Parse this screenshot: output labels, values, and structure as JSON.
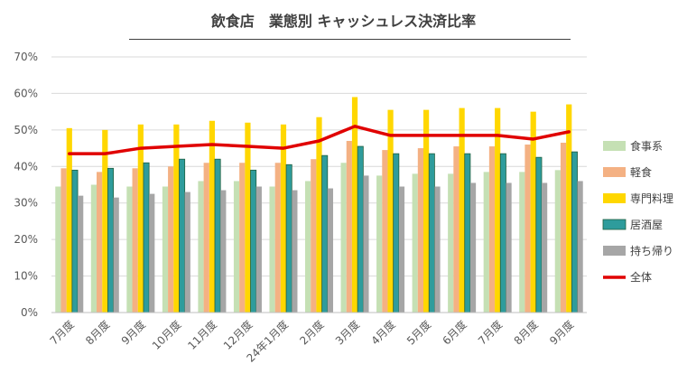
{
  "chart_data": {
    "type": "bar",
    "title": "飲食店　業態別 キャッシュレス決済比率",
    "categories": [
      "7月度",
      "8月度",
      "9月度",
      "10月度",
      "11月度",
      "12月度",
      "24年1月度",
      "2月度",
      "3月度",
      "4月度",
      "5月度",
      "6月度",
      "7月度",
      "8月度",
      "9月度"
    ],
    "yticks": [
      "0%",
      "10%",
      "20%",
      "30%",
      "40%",
      "50%",
      "60%",
      "70%"
    ],
    "ylim": [
      0,
      70
    ],
    "grid": true,
    "legend_position": "right",
    "series": [
      {
        "name": "食事系",
        "kind": "bar",
        "color": "#c5e0b4",
        "values": [
          34.5,
          35,
          34.5,
          34.5,
          36,
          36,
          34.5,
          36,
          41,
          37.5,
          38,
          38,
          38.5,
          38.5,
          39
        ]
      },
      {
        "name": "軽食",
        "kind": "bar",
        "color": "#f4b183",
        "values": [
          39.5,
          38.5,
          39.5,
          40,
          41,
          41,
          41,
          42,
          47,
          44.5,
          45,
          45.5,
          45.5,
          46,
          46.5
        ]
      },
      {
        "name": "専門料理",
        "kind": "bar",
        "color": "#ffd700",
        "values": [
          50.5,
          50,
          51.5,
          51.5,
          52.5,
          52,
          51.5,
          53.5,
          59,
          55.5,
          55.5,
          56,
          56,
          55,
          57
        ]
      },
      {
        "name": "居酒屋",
        "kind": "bar",
        "color": "#2e9c9c",
        "values": [
          39,
          39.5,
          41,
          42,
          42,
          39,
          40.5,
          43,
          45.5,
          43.5,
          43.5,
          43.5,
          43.5,
          42.5,
          44
        ]
      },
      {
        "name": "持ち帰り",
        "kind": "bar",
        "color": "#a6a6a6",
        "values": [
          32,
          31.5,
          32.5,
          33,
          33.5,
          34.5,
          33.5,
          34,
          37.5,
          34.5,
          34.5,
          35.5,
          35.5,
          35.5,
          36
        ]
      },
      {
        "name": "全体",
        "kind": "line",
        "color": "#e00000",
        "values": [
          43.5,
          43.5,
          45,
          45.5,
          46,
          45.5,
          45,
          47,
          51,
          48.5,
          48.5,
          48.5,
          48.5,
          47.5,
          49.5
        ]
      }
    ]
  }
}
